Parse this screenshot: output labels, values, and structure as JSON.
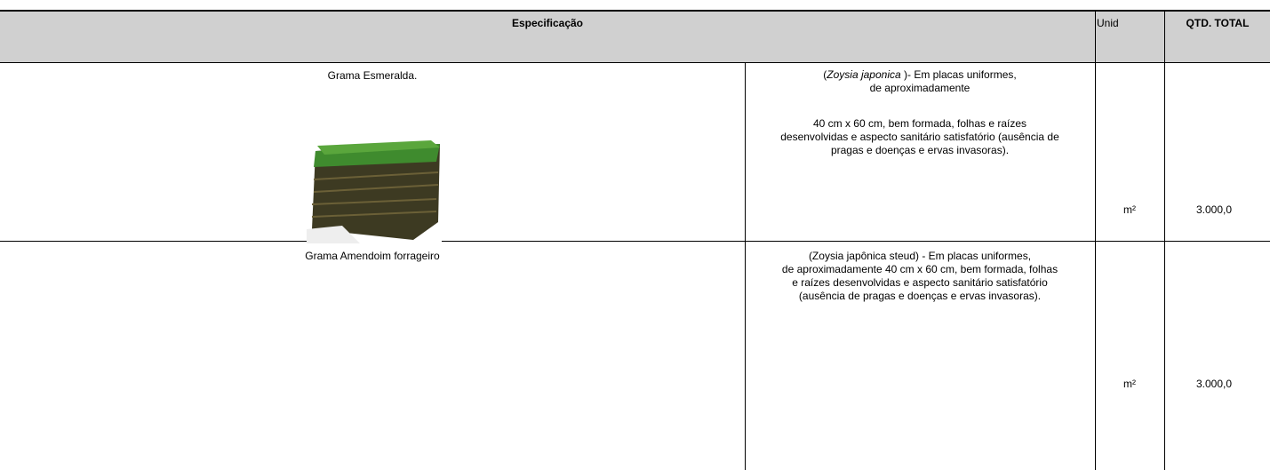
{
  "table": {
    "header": {
      "specification": "Especificação",
      "unit": "Unid",
      "quantity": "QTD. TOTAL"
    },
    "rows": [
      {
        "name": "Grama Esmeralda.",
        "description": {
          "first_line": {
            "open": "(",
            "species": "Zoysia japonica",
            "rest": " )- Em placas uniformes,"
          },
          "paragraphs": [
            [
              "de aproximadamente"
            ],
            [
              "40 cm x 60 cm, bem formada, folhas e raízes",
              "desenvolvidas e aspecto sanitário satisfatório (ausência de",
              "pragas e doenças e ervas invasoras)."
            ]
          ]
        },
        "unit": "m²",
        "quantity": "3.000,0"
      },
      {
        "name": "Grama Amendoim forrageiro",
        "description": {
          "paragraphs": [
            [
              "(Zoysia japônica steud) -  Em placas uniformes,",
              "de aproximadamente 40 cm x 60 cm, bem formada, folhas",
              "e raízes desenvolvidas e aspecto sanitário satisfatório",
              "(ausência de pragas e doenças e ervas invasoras)."
            ]
          ]
        },
        "unit": "m²",
        "quantity": "3.000,0"
      }
    ]
  }
}
